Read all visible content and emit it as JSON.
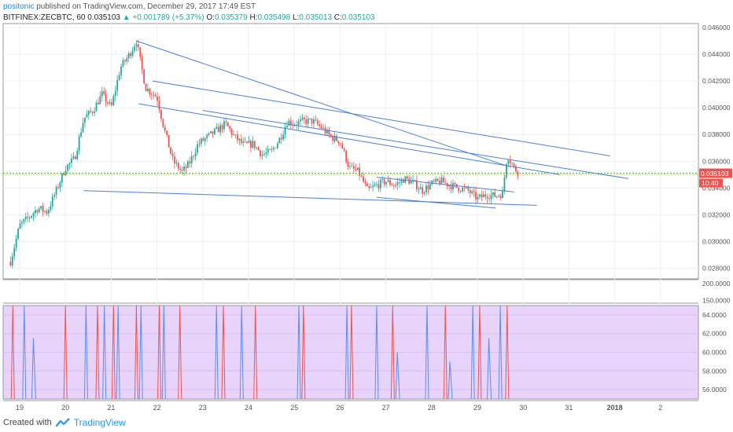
{
  "header": {
    "user": "positonic",
    "published": "published on TradingView.com, December 29, 2017 17:49 EST",
    "symbol": "BITFINEX:ZECBTC, 60",
    "last": "0.035103",
    "change": "▲ +0.001789 (+5.37%)",
    "o_label": "O:",
    "o": "0.035379",
    "h_label": "H:",
    "h": "0.035498",
    "l_label": "L:",
    "l": "0.035013",
    "c_label": "C:",
    "c": "0.035103"
  },
  "footer": {
    "created": "Created with",
    "brand": "TradingView"
  },
  "colors": {
    "up": "#26a69a",
    "down": "#ef5350",
    "trendline": "#4a7fd4",
    "price_line": "#4caf50",
    "osc_bg": "#e8d3fb",
    "osc_blue": "#5b8def",
    "osc_red": "#ef5350",
    "price_tag": "#ef5350"
  },
  "chart_data": {
    "type": "candlestick",
    "x_ticks": [
      "19",
      "20",
      "21",
      "22",
      "23",
      "24",
      "25",
      "26",
      "27",
      "28",
      "29",
      "30",
      "31",
      "2018",
      "2"
    ],
    "price_axis": {
      "ylim": [
        0.0272,
        0.0463
      ],
      "ticks": [
        "0.046000",
        "0.044000",
        "0.042000",
        "0.040000",
        "0.038000",
        "0.036000",
        "0.034000",
        "0.032000",
        "0.030000",
        "0.028000"
      ]
    },
    "volume_axis": {
      "ylim": [
        142,
        212
      ],
      "ticks": [
        "200.0000",
        "150.0000"
      ]
    },
    "oscillator_axis": {
      "ylim": [
        55,
        65
      ],
      "ticks": [
        "64.0000",
        "62.0000",
        "60.0000",
        "58.0000",
        "56.0000"
      ]
    },
    "current_price_tag": "0.035103",
    "countdown_tag": "10:40",
    "close_path": [
      [
        18.8,
        0.0285
      ],
      [
        19.0,
        0.0312
      ],
      [
        19.2,
        0.0318
      ],
      [
        19.4,
        0.0325
      ],
      [
        19.6,
        0.0322
      ],
      [
        19.8,
        0.0338
      ],
      [
        20.0,
        0.0355
      ],
      [
        20.2,
        0.0362
      ],
      [
        20.4,
        0.0392
      ],
      [
        20.6,
        0.0398
      ],
      [
        20.8,
        0.041
      ],
      [
        21.0,
        0.04
      ],
      [
        21.2,
        0.043
      ],
      [
        21.4,
        0.044
      ],
      [
        21.55,
        0.045
      ],
      [
        21.75,
        0.0415
      ],
      [
        22.0,
        0.0408
      ],
      [
        22.15,
        0.0385
      ],
      [
        22.35,
        0.036
      ],
      [
        22.55,
        0.0352
      ],
      [
        22.7,
        0.0358
      ],
      [
        22.9,
        0.0373
      ],
      [
        23.1,
        0.0378
      ],
      [
        23.3,
        0.0383
      ],
      [
        23.5,
        0.0388
      ],
      [
        23.7,
        0.0378
      ],
      [
        23.9,
        0.0372
      ],
      [
        24.1,
        0.0373
      ],
      [
        24.3,
        0.0365
      ],
      [
        24.5,
        0.0367
      ],
      [
        24.7,
        0.0378
      ],
      [
        24.85,
        0.039
      ],
      [
        25.0,
        0.0388
      ],
      [
        25.2,
        0.039
      ],
      [
        25.4,
        0.039
      ],
      [
        25.6,
        0.0385
      ],
      [
        25.8,
        0.0378
      ],
      [
        26.0,
        0.0375
      ],
      [
        26.2,
        0.0355
      ],
      [
        26.4,
        0.0352
      ],
      [
        26.6,
        0.0338
      ],
      [
        26.8,
        0.0342
      ],
      [
        27.0,
        0.0345
      ],
      [
        27.2,
        0.0342
      ],
      [
        27.4,
        0.0347
      ],
      [
        27.6,
        0.0344
      ],
      [
        27.8,
        0.0338
      ],
      [
        28.0,
        0.0343
      ],
      [
        28.2,
        0.0345
      ],
      [
        28.4,
        0.0342
      ],
      [
        28.6,
        0.034
      ],
      [
        28.8,
        0.0338
      ],
      [
        29.0,
        0.0332
      ],
      [
        29.2,
        0.0335
      ],
      [
        29.4,
        0.0334
      ],
      [
        29.55,
        0.0336
      ],
      [
        29.65,
        0.0365
      ],
      [
        29.8,
        0.0355
      ],
      [
        29.9,
        0.0351
      ]
    ],
    "trendlines": [
      [
        [
          21.55,
          0.045
        ],
        [
          29.6,
          0.0357
        ]
      ],
      [
        [
          21.6,
          0.0403
        ],
        [
          30.8,
          0.035
        ]
      ],
      [
        [
          21.9,
          0.042
        ],
        [
          31.9,
          0.0364
        ]
      ],
      [
        [
          23.0,
          0.0398
        ],
        [
          32.3,
          0.0347
        ]
      ],
      [
        [
          20.4,
          0.0338
        ],
        [
          30.3,
          0.0327
        ]
      ],
      [
        [
          26.8,
          0.0348
        ],
        [
          29.8,
          0.0337
        ]
      ],
      [
        [
          26.8,
          0.0333
        ],
        [
          29.4,
          0.0325
        ]
      ]
    ]
  }
}
